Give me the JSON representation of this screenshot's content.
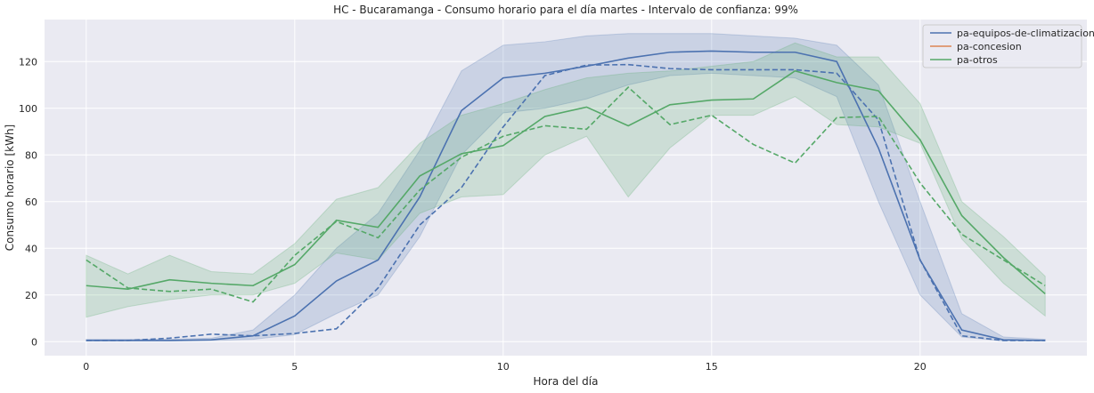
{
  "chart_data": {
    "type": "line",
    "title": "HC - Bucaramanga - Consumo horario para el día martes - Intervalo de confianza: 99%",
    "xlabel": "Hora del día",
    "ylabel": "Consumo horario [kWh]",
    "xlim": [
      -1.0,
      24.0
    ],
    "ylim": [
      -6,
      138
    ],
    "xticks": [
      0,
      5,
      10,
      15,
      20
    ],
    "yticks": [
      0,
      20,
      40,
      60,
      80,
      100,
      120
    ],
    "grid": true,
    "legend_position": "top-right",
    "x": [
      0,
      1,
      2,
      3,
      4,
      5,
      6,
      7,
      8,
      9,
      10,
      11,
      12,
      13,
      14,
      15,
      16,
      17,
      18,
      19,
      20,
      21,
      22,
      23
    ],
    "series": [
      {
        "name": "pa-equipos-de-climatizacion",
        "color": "#4c72b0",
        "mean": [
          0.5,
          0.5,
          0.5,
          0.8,
          2.5,
          11,
          26,
          35,
          62,
          99,
          113,
          115,
          118,
          121.5,
          124,
          124.5,
          124,
          124,
          120,
          83,
          35,
          5,
          0.8,
          0.5
        ],
        "median": [
          0.5,
          0.5,
          1.5,
          3.2,
          2.5,
          3.5,
          5.5,
          23,
          50,
          66,
          92,
          114,
          118.5,
          118.7,
          117,
          116.5,
          116.5,
          116.5,
          115,
          95,
          35,
          2.5,
          0.5,
          0.5
        ],
        "ci_lower": [
          0.3,
          0.3,
          0.3,
          0.5,
          1,
          3,
          12,
          20,
          45,
          80,
          98,
          100,
          104,
          110,
          114,
          115,
          114,
          113,
          105,
          60,
          20,
          2,
          0.3,
          0.3
        ],
        "ci_upper": [
          1,
          1,
          1,
          1.5,
          5,
          20,
          40,
          55,
          82,
          116,
          127,
          128.5,
          131,
          132,
          132,
          132,
          131,
          130,
          127,
          110,
          60,
          12,
          2,
          1
        ]
      },
      {
        "name": "pa-concesion",
        "color": "#dd8452",
        "mean": [],
        "median": [],
        "ci_lower": [],
        "ci_upper": []
      },
      {
        "name": "pa-otros",
        "color": "#55a868",
        "mean": [
          24,
          22.5,
          26.5,
          25,
          24,
          33,
          52,
          49,
          71,
          80.5,
          84,
          96.5,
          100.5,
          92.5,
          101.5,
          103.5,
          104,
          116,
          111,
          107.5,
          86.5,
          54,
          36,
          20.5
        ],
        "median": [
          35,
          23,
          21.5,
          22.5,
          17,
          37,
          51.5,
          44.5,
          65,
          79,
          88,
          92.5,
          91,
          109,
          93,
          97,
          84.5,
          76.5,
          96,
          96.5,
          68,
          46,
          35,
          24
        ],
        "ci_lower": [
          10.5,
          15,
          18,
          20,
          20,
          25,
          38,
          35,
          55,
          62,
          63,
          80,
          88,
          62,
          83,
          97,
          97,
          105,
          93,
          92,
          85,
          44,
          25,
          11
        ],
        "ci_upper": [
          37,
          29,
          37,
          30,
          29,
          42,
          61,
          66,
          85,
          97,
          102,
          108,
          113,
          115,
          116,
          118,
          120,
          128,
          122,
          122,
          102,
          60,
          45,
          28
        ]
      }
    ]
  }
}
